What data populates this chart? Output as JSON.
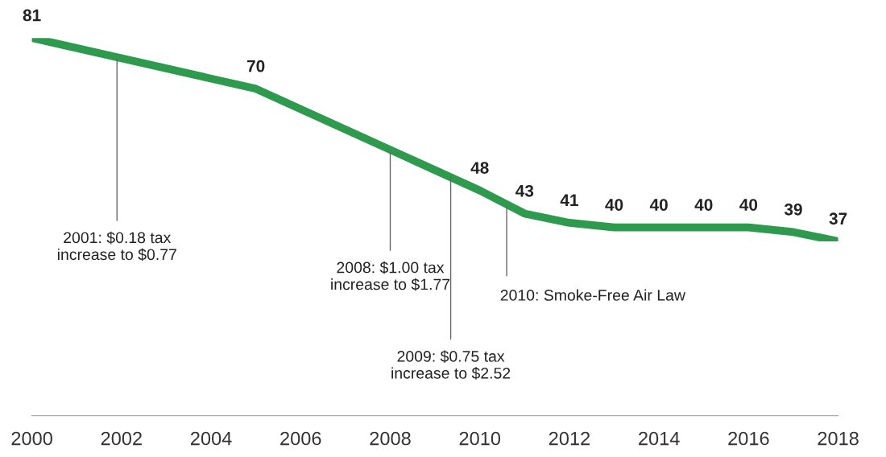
{
  "chart_data": {
    "type": "line",
    "x": [
      2000,
      2005,
      2010,
      2011,
      2012,
      2013,
      2014,
      2015,
      2016,
      2017,
      2018
    ],
    "series": [
      {
        "color": "#2e9a4e",
        "values": [
          81,
          70,
          48,
          43,
          41,
          40,
          40,
          40,
          40,
          39,
          37
        ]
      }
    ],
    "data_labels": true,
    "xlim": [
      2000,
      2018
    ],
    "xticks": [
      2000,
      2002,
      2004,
      2006,
      2008,
      2010,
      2012,
      2014,
      2016,
      2018
    ],
    "grid": false,
    "legend": false,
    "marker": "none",
    "line_style": "solid",
    "tick_labels": "x",
    "annotations": [
      {
        "text": "2001: $0.18 tax\nincrease to $0.77",
        "x": 2001.9,
        "y": 76.8
      },
      {
        "text": "2008: $1.00 tax\nincrease to $1.77",
        "x": 2008,
        "y": 56.8
      },
      {
        "text": "2009: $0.75 tax\nincrease to $2.52",
        "x": 2009.35,
        "y": 51.6
      },
      {
        "text": "2010: Smoke-Free Air Law",
        "x": 2010.6,
        "y": 45
      }
    ]
  }
}
